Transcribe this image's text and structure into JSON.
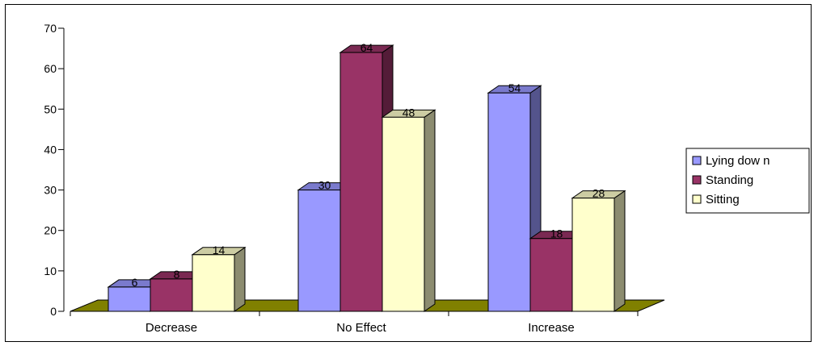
{
  "chart_data": {
    "type": "bar",
    "categories": [
      "Decrease",
      "No Effect",
      "Increase"
    ],
    "series": [
      {
        "name": "Lying dow n",
        "values": [
          6,
          30,
          54
        ],
        "color": "#9999FF"
      },
      {
        "name": "Standing",
        "values": [
          8,
          64,
          18
        ],
        "color": "#993366"
      },
      {
        "name": "Sitting",
        "values": [
          14,
          48,
          28
        ],
        "color": "#FFFFCC"
      }
    ],
    "title": "",
    "xlabel": "",
    "ylabel": "",
    "ylim": [
      0,
      70
    ],
    "yticks": [
      "0",
      "10",
      "20",
      "30",
      "40",
      "50",
      "60",
      "70"
    ],
    "floor_color": "#808000",
    "grid": false,
    "legend_position": "right",
    "bar_style": "3d"
  }
}
